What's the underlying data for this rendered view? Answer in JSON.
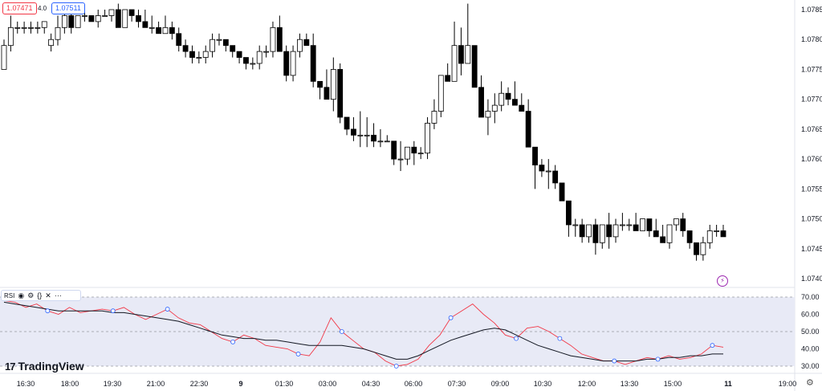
{
  "header": {
    "bid_price": "1.07471",
    "spread": "4.0",
    "ask_price": "1.07511"
  },
  "rsi_legend": {
    "label": "RSI",
    "eye_icon": "eye-icon",
    "settings_icon": "gear-icon",
    "source_icon": "code-braces-icon",
    "close_icon": "close-icon",
    "more_icon": "more-icon"
  },
  "brand": {
    "name": "TradingView",
    "logo_text": "17"
  },
  "colors": {
    "up_candle": "#ffffff",
    "down_candle": "#000000",
    "rsi_line": "#f23645",
    "rsi_ma": "#131722",
    "rsi_band": "#e8eaf6",
    "marker": "#2962ff"
  },
  "chart_data": [
    {
      "type": "candlestick",
      "title": "",
      "price_axis": {
        "ticks": [
          "1.0785",
          "1.0780",
          "1.0775",
          "1.0770",
          "1.0765",
          "1.0760",
          "1.0755",
          "1.0750",
          "1.0745",
          "1.0740"
        ]
      },
      "ylim": [
        1.0738,
        1.0788
      ],
      "time_axis": {
        "ticks": [
          "16:30",
          "18:00",
          "19:30",
          "21:00",
          "22:30",
          "9",
          "01:30",
          "03:00",
          "04:30",
          "06:00",
          "07:30",
          "09:00",
          "10:30",
          "12:00",
          "13:30",
          "15:00",
          "11",
          "19:00"
        ]
      },
      "ohlc": [
        [
          1.0775,
          1.078,
          1.0775,
          1.0779
        ],
        [
          1.0779,
          1.0784,
          1.0778,
          1.0782
        ],
        [
          1.0782,
          1.0783,
          1.0781,
          1.0782
        ],
        [
          1.0782,
          1.0783,
          1.0781,
          1.0782
        ],
        [
          1.0782,
          1.0783,
          1.0781,
          1.0782
        ],
        [
          1.0782,
          1.0783,
          1.0781,
          1.0782
        ],
        [
          1.0782,
          1.0783,
          1.0781,
          1.0783
        ],
        [
          1.0779,
          1.0781,
          1.0778,
          1.078
        ],
        [
          1.078,
          1.0784,
          1.0779,
          1.0782
        ],
        [
          1.0782,
          1.0785,
          1.0781,
          1.0784
        ],
        [
          1.0784,
          1.0785,
          1.0781,
          1.0782
        ],
        [
          1.0782,
          1.0784,
          1.0782,
          1.0784
        ],
        [
          1.0784,
          1.0785,
          1.0783,
          1.0784
        ],
        [
          1.0784,
          1.0784,
          1.0783,
          1.0783
        ],
        [
          1.0783,
          1.0785,
          1.0782,
          1.0784
        ],
        [
          1.0784,
          1.0785,
          1.0784,
          1.0784
        ],
        [
          1.0784,
          1.0785,
          1.0783,
          1.0785
        ],
        [
          1.0785,
          1.0786,
          1.0782,
          1.0782
        ],
        [
          1.0782,
          1.0785,
          1.0782,
          1.0785
        ],
        [
          1.0785,
          1.0785,
          1.0783,
          1.0784
        ],
        [
          1.0784,
          1.0785,
          1.0782,
          1.0783
        ],
        [
          1.0783,
          1.0785,
          1.0782,
          1.0782
        ],
        [
          1.0782,
          1.0784,
          1.0781,
          1.0782
        ],
        [
          1.0782,
          1.0783,
          1.0781,
          1.0781
        ],
        [
          1.0781,
          1.0784,
          1.0781,
          1.0782
        ],
        [
          1.0782,
          1.0783,
          1.078,
          1.0781
        ],
        [
          1.0781,
          1.0782,
          1.0778,
          1.0779
        ],
        [
          1.0779,
          1.078,
          1.0777,
          1.0778
        ],
        [
          1.0778,
          1.0779,
          1.0776,
          1.0777
        ],
        [
          1.0777,
          1.0778,
          1.0776,
          1.0777
        ],
        [
          1.0777,
          1.0779,
          1.0776,
          1.0778
        ],
        [
          1.0778,
          1.0781,
          1.0777,
          1.078
        ],
        [
          1.078,
          1.0781,
          1.0779,
          1.078
        ],
        [
          1.078,
          1.078,
          1.0778,
          1.0779
        ],
        [
          1.0779,
          1.0779,
          1.0777,
          1.0778
        ],
        [
          1.0778,
          1.0778,
          1.0776,
          1.0777
        ],
        [
          1.0777,
          1.0777,
          1.0775,
          1.0776
        ],
        [
          1.0776,
          1.0777,
          1.0775,
          1.0776
        ],
        [
          1.0776,
          1.0779,
          1.0775,
          1.0778
        ],
        [
          1.0778,
          1.0779,
          1.0777,
          1.0778
        ],
        [
          1.0778,
          1.0783,
          1.0777,
          1.0782
        ],
        [
          1.0782,
          1.0784,
          1.0778,
          1.0778
        ],
        [
          1.0778,
          1.0779,
          1.0773,
          1.0774
        ],
        [
          1.0774,
          1.0779,
          1.0773,
          1.0778
        ],
        [
          1.0778,
          1.0781,
          1.0777,
          1.078
        ],
        [
          1.078,
          1.0781,
          1.0779,
          1.0779
        ],
        [
          1.0779,
          1.0781,
          1.0772,
          1.0773
        ],
        [
          1.0773,
          1.0773,
          1.077,
          1.0772
        ],
        [
          1.0772,
          1.0775,
          1.077,
          1.077
        ],
        [
          1.077,
          1.0777,
          1.0768,
          1.0775
        ],
        [
          1.0775,
          1.0776,
          1.0766,
          1.0767
        ],
        [
          1.0767,
          1.0767,
          1.0764,
          1.0765
        ],
        [
          1.0765,
          1.0767,
          1.0763,
          1.0764
        ],
        [
          1.0764,
          1.0768,
          1.0762,
          1.0764
        ],
        [
          1.0764,
          1.0767,
          1.0762,
          1.0764
        ],
        [
          1.0764,
          1.0766,
          1.0762,
          1.0763
        ],
        [
          1.0763,
          1.0765,
          1.0762,
          1.0763
        ],
        [
          1.0763,
          1.0764,
          1.0763,
          1.0763
        ],
        [
          1.0763,
          1.0763,
          1.0759,
          1.076
        ],
        [
          1.076,
          1.0763,
          1.0758,
          1.076
        ],
        [
          1.076,
          1.0762,
          1.0759,
          1.0762
        ],
        [
          1.0762,
          1.0763,
          1.0759,
          1.0761
        ],
        [
          1.0761,
          1.0762,
          1.076,
          1.0761
        ],
        [
          1.0761,
          1.0767,
          1.076,
          1.0766
        ],
        [
          1.0766,
          1.077,
          1.0765,
          1.0768
        ],
        [
          1.0768,
          1.0774,
          1.0767,
          1.0774
        ],
        [
          1.0774,
          1.0776,
          1.0773,
          1.0773
        ],
        [
          1.0773,
          1.0783,
          1.0773,
          1.0779
        ],
        [
          1.0779,
          1.0782,
          1.0774,
          1.0776
        ],
        [
          1.0776,
          1.0786,
          1.0776,
          1.0779
        ],
        [
          1.0779,
          1.0779,
          1.0772,
          1.0772
        ],
        [
          1.0772,
          1.0774,
          1.0767,
          1.0767
        ],
        [
          1.0767,
          1.077,
          1.0764,
          1.0768
        ],
        [
          1.0768,
          1.0771,
          1.0766,
          1.0769
        ],
        [
          1.0769,
          1.0773,
          1.0768,
          1.0771
        ],
        [
          1.0771,
          1.0772,
          1.0769,
          1.077
        ],
        [
          1.077,
          1.0773,
          1.0769,
          1.0769
        ],
        [
          1.0769,
          1.0771,
          1.0768,
          1.0768
        ],
        [
          1.0768,
          1.077,
          1.0762,
          1.0762
        ],
        [
          1.0762,
          1.0762,
          1.0755,
          1.0759
        ],
        [
          1.0759,
          1.076,
          1.0757,
          1.0758
        ],
        [
          1.0758,
          1.076,
          1.0755,
          1.0758
        ],
        [
          1.0758,
          1.0759,
          1.0755,
          1.0756
        ],
        [
          1.0756,
          1.0756,
          1.0753,
          1.0753
        ],
        [
          1.0753,
          1.0753,
          1.0747,
          1.0749
        ],
        [
          1.0749,
          1.075,
          1.0747,
          1.0749
        ],
        [
          1.0749,
          1.075,
          1.0746,
          1.0747
        ],
        [
          1.0747,
          1.0749,
          1.0746,
          1.0749
        ],
        [
          1.0749,
          1.075,
          1.0744,
          1.0746
        ],
        [
          1.0746,
          1.0749,
          1.0745,
          1.0749
        ],
        [
          1.0749,
          1.0751,
          1.0745,
          1.0747
        ],
        [
          1.0747,
          1.075,
          1.0746,
          1.0749
        ],
        [
          1.0749,
          1.0751,
          1.0748,
          1.0749
        ],
        [
          1.0749,
          1.075,
          1.0748,
          1.0749
        ],
        [
          1.0749,
          1.0751,
          1.0748,
          1.0748
        ],
        [
          1.0748,
          1.075,
          1.0748,
          1.075
        ],
        [
          1.075,
          1.075,
          1.0747,
          1.0748
        ],
        [
          1.0748,
          1.075,
          1.0747,
          1.0747
        ],
        [
          1.0747,
          1.0749,
          1.0746,
          1.0746
        ],
        [
          1.0746,
          1.0749,
          1.0745,
          1.0749
        ],
        [
          1.0749,
          1.075,
          1.0748,
          1.075
        ],
        [
          1.075,
          1.0751,
          1.0747,
          1.0748
        ],
        [
          1.0748,
          1.0748,
          1.0745,
          1.0746
        ],
        [
          1.0746,
          1.0746,
          1.0743,
          1.0744
        ],
        [
          1.0744,
          1.0747,
          1.0743,
          1.0746
        ],
        [
          1.0746,
          1.0749,
          1.0745,
          1.0748
        ],
        [
          1.0748,
          1.0749,
          1.0747,
          1.0748
        ],
        [
          1.0748,
          1.0749,
          1.0747,
          1.0747
        ]
      ]
    },
    {
      "type": "line",
      "title": "RSI",
      "y_ticks": [
        "70.00",
        "60.00",
        "50.00",
        "40.00",
        "30.00"
      ],
      "ylim": [
        28,
        72
      ],
      "bands": [
        70,
        50,
        30
      ],
      "series": [
        {
          "name": "",
          "values": [
            68,
            67,
            64,
            66,
            62,
            60,
            64,
            61,
            62,
            63,
            62,
            64,
            60,
            57,
            60,
            63,
            58,
            55,
            54,
            50,
            46,
            44,
            48,
            46,
            42,
            41,
            40,
            37,
            36,
            44,
            58,
            50,
            45,
            40,
            38,
            33,
            30,
            31,
            34,
            42,
            48,
            58,
            62,
            66,
            60,
            55,
            48,
            46,
            52,
            53,
            50,
            46,
            42,
            37,
            35,
            33,
            33,
            31,
            33,
            35,
            34,
            36,
            34,
            35,
            37,
            42,
            41
          ]
        },
        {
          "name": "",
          "values": [
            67,
            66,
            65,
            64,
            63,
            62,
            62,
            62,
            62,
            62,
            61,
            61,
            60,
            59,
            58,
            57,
            56,
            54,
            52,
            50,
            48,
            47,
            46,
            46,
            45,
            45,
            44,
            43,
            42,
            42,
            42,
            42,
            41,
            40,
            38,
            36,
            34,
            34,
            36,
            39,
            42,
            45,
            47,
            49,
            51,
            52,
            51,
            48,
            45,
            42,
            40,
            38,
            36,
            35,
            34,
            33,
            33,
            33,
            33,
            34,
            34,
            35,
            35,
            36,
            36,
            37,
            37
          ]
        }
      ]
    }
  ]
}
